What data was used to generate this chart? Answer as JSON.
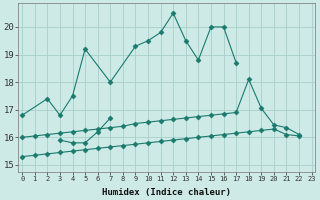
{
  "xlabel": "Humidex (Indice chaleur)",
  "series": [
    {
      "x": [
        0,
        2,
        3,
        4,
        5,
        7,
        9,
        10,
        11,
        12,
        13,
        14,
        15,
        16,
        17
      ],
      "y": [
        16.8,
        17.4,
        16.8,
        17.5,
        19.2,
        18.0,
        19.3,
        19.5,
        19.8,
        20.5,
        19.5,
        18.8,
        20.0,
        20.0,
        18.7
      ]
    },
    {
      "x": [
        3,
        4,
        5,
        6,
        7
      ],
      "y": [
        15.9,
        15.8,
        15.8,
        16.2,
        16.7
      ]
    },
    {
      "x": [
        0,
        1,
        2,
        3,
        4,
        5,
        6,
        7,
        8,
        9,
        10,
        11,
        12,
        13,
        14,
        15,
        16,
        17,
        18,
        19,
        20,
        21,
        22
      ],
      "y": [
        16.0,
        16.05,
        16.1,
        16.15,
        16.2,
        16.25,
        16.3,
        16.35,
        16.4,
        16.5,
        16.55,
        16.6,
        16.65,
        16.7,
        16.75,
        16.8,
        16.85,
        16.9,
        18.1,
        17.05,
        16.45,
        16.35,
        16.1
      ]
    },
    {
      "x": [
        0,
        1,
        2,
        3,
        4,
        5,
        6,
        7,
        8,
        9,
        10,
        11,
        12,
        13,
        14,
        15,
        16,
        17,
        18,
        19,
        20,
        21,
        22
      ],
      "y": [
        15.3,
        15.35,
        15.4,
        15.45,
        15.5,
        15.55,
        15.6,
        15.65,
        15.7,
        15.75,
        15.8,
        15.85,
        15.9,
        15.95,
        16.0,
        16.05,
        16.1,
        16.15,
        16.2,
        16.25,
        16.3,
        16.1,
        16.05
      ]
    }
  ],
  "color": "#1a7a6e",
  "bg_color": "#ceeae6",
  "grid_color": "#a8ceca",
  "xlim": [
    -0.3,
    23.3
  ],
  "ylim": [
    14.75,
    20.85
  ],
  "yticks": [
    15,
    16,
    17,
    18,
    19,
    20
  ],
  "xticks": [
    0,
    1,
    2,
    3,
    4,
    5,
    6,
    7,
    8,
    9,
    10,
    11,
    12,
    13,
    14,
    15,
    16,
    17,
    18,
    19,
    20,
    21,
    22,
    23
  ]
}
